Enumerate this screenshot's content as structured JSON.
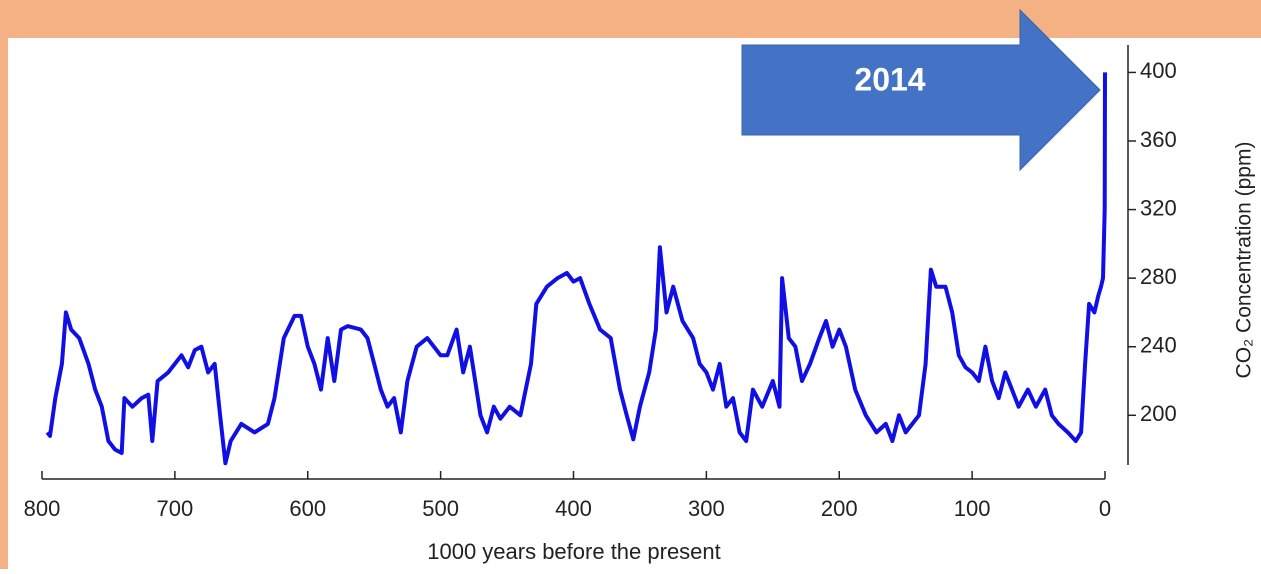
{
  "chart_data": {
    "type": "line",
    "xlabel": "1000 years before the present",
    "ylabel": "CO₂ Concentration (ppm)",
    "annotation": "2014",
    "xlim": [
      800,
      0
    ],
    "xticks": [
      800,
      700,
      600,
      500,
      400,
      300,
      200,
      100,
      0
    ],
    "ylim": [
      171,
      416
    ],
    "yticks": [
      200,
      240,
      280,
      320,
      360,
      400
    ],
    "color": "#1010e6",
    "x": [
      796,
      794,
      790,
      785,
      782,
      778,
      772,
      765,
      760,
      755,
      750,
      745,
      740,
      738,
      732,
      725,
      720,
      717,
      713,
      705,
      695,
      690,
      685,
      680,
      675,
      670,
      666,
      662,
      658,
      650,
      640,
      630,
      625,
      618,
      610,
      605,
      600,
      595,
      590,
      585,
      580,
      575,
      570,
      560,
      555,
      550,
      545,
      540,
      535,
      530,
      525,
      518,
      510,
      500,
      495,
      488,
      483,
      478,
      470,
      465,
      460,
      455,
      448,
      440,
      432,
      428,
      420,
      412,
      405,
      400,
      395,
      388,
      380,
      372,
      365,
      360,
      355,
      350,
      343,
      338,
      335,
      330,
      325,
      318,
      310,
      305,
      300,
      295,
      290,
      285,
      280,
      275,
      270,
      265,
      258,
      250,
      245,
      243,
      238,
      233,
      228,
      222,
      215,
      210,
      205,
      200,
      195,
      188,
      180,
      172,
      165,
      160,
      155,
      150,
      145,
      140,
      135,
      131,
      127,
      120,
      115,
      110,
      105,
      100,
      95,
      90,
      85,
      80,
      75,
      70,
      65,
      58,
      52,
      45,
      40,
      35,
      28,
      22,
      18,
      15,
      12,
      8,
      5,
      3,
      1.5,
      0.2,
      0
    ],
    "values": [
      190,
      188,
      210,
      230,
      260,
      250,
      245,
      230,
      215,
      205,
      185,
      180,
      178,
      210,
      205,
      210,
      212,
      185,
      220,
      225,
      235,
      228,
      238,
      240,
      225,
      230,
      200,
      172,
      185,
      195,
      190,
      195,
      210,
      245,
      258,
      258,
      240,
      230,
      215,
      245,
      220,
      250,
      252,
      250,
      245,
      230,
      215,
      205,
      210,
      190,
      220,
      240,
      245,
      235,
      235,
      250,
      225,
      240,
      200,
      190,
      205,
      198,
      205,
      200,
      230,
      265,
      275,
      280,
      283,
      278,
      280,
      265,
      250,
      245,
      215,
      200,
      186,
      205,
      225,
      250,
      298,
      260,
      275,
      255,
      245,
      230,
      225,
      215,
      230,
      205,
      210,
      190,
      185,
      215,
      205,
      220,
      205,
      280,
      245,
      240,
      220,
      230,
      245,
      255,
      240,
      250,
      240,
      215,
      200,
      190,
      195,
      185,
      200,
      190,
      195,
      200,
      230,
      285,
      275,
      275,
      260,
      235,
      228,
      225,
      220,
      240,
      220,
      210,
      225,
      215,
      205,
      215,
      205,
      215,
      200,
      195,
      190,
      185,
      190,
      230,
      265,
      260,
      270,
      275,
      280,
      320,
      400
    ]
  }
}
